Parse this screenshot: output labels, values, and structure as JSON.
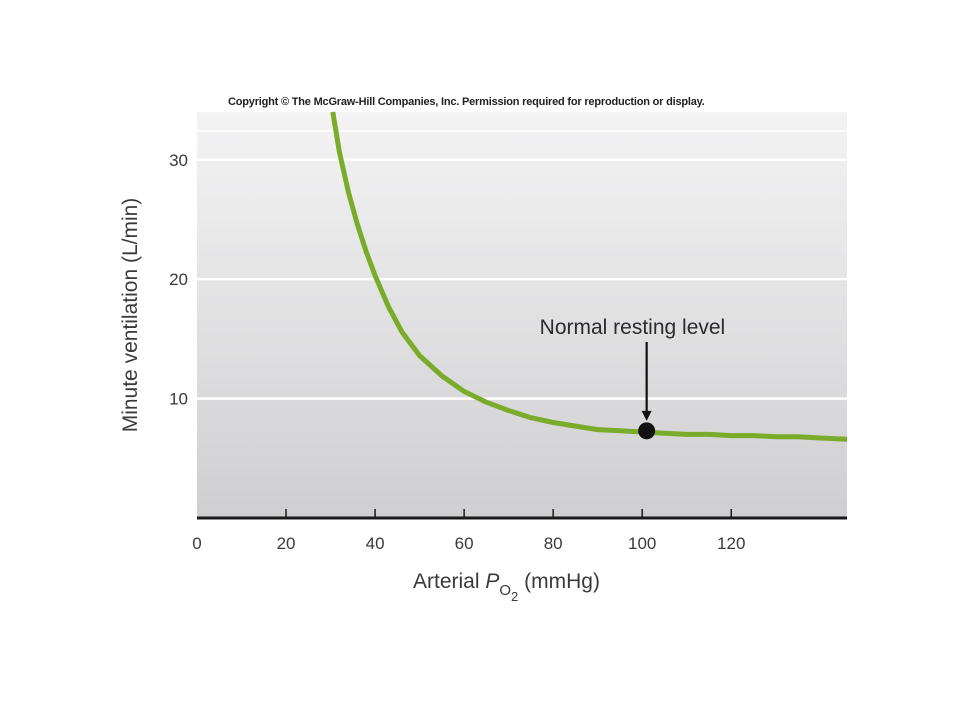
{
  "copyright": "Copyright © The McGraw-Hill Companies, Inc. Permission required for reproduction or display.",
  "chart_data": {
    "type": "line",
    "title": "",
    "xlabel": {
      "prefix": "Arterial ",
      "italic": "P",
      "subscript": "O",
      "subsubscript": "2",
      "suffix": " (mmHg)"
    },
    "ylabel": "Minute ventilation (L/min)",
    "xlim": [
      0,
      146
    ],
    "ylim": [
      0,
      34
    ],
    "x_ticks": [
      0,
      20,
      40,
      60,
      80,
      100,
      120
    ],
    "x_tick_labels": [
      "0",
      "20",
      "40",
      "60",
      "80",
      "100",
      "120"
    ],
    "y_ticks": [
      10,
      20,
      30
    ],
    "y_tick_labels": [
      "10",
      "20",
      "30"
    ],
    "grid": "horizontal",
    "series": [
      {
        "color": "#7aab2a",
        "x": [
          30.5,
          32,
          34,
          36,
          38,
          40,
          43,
          46,
          50,
          55,
          60,
          65,
          70,
          75,
          80,
          85,
          90,
          95,
          100,
          105,
          110,
          115,
          120,
          125,
          130,
          135,
          140,
          146
        ],
        "y": [
          34.0,
          30.6,
          27.3,
          24.6,
          22.3,
          20.3,
          17.7,
          15.6,
          13.6,
          11.9,
          10.6,
          9.7,
          9.0,
          8.4,
          8.0,
          7.7,
          7.4,
          7.3,
          7.2,
          7.1,
          7.0,
          7.0,
          6.9,
          6.9,
          6.8,
          6.8,
          6.7,
          6.6
        ]
      }
    ],
    "annotations": [
      {
        "text": "Normal resting level",
        "x": 101,
        "y": 7.3,
        "color": "#111111"
      }
    ]
  }
}
